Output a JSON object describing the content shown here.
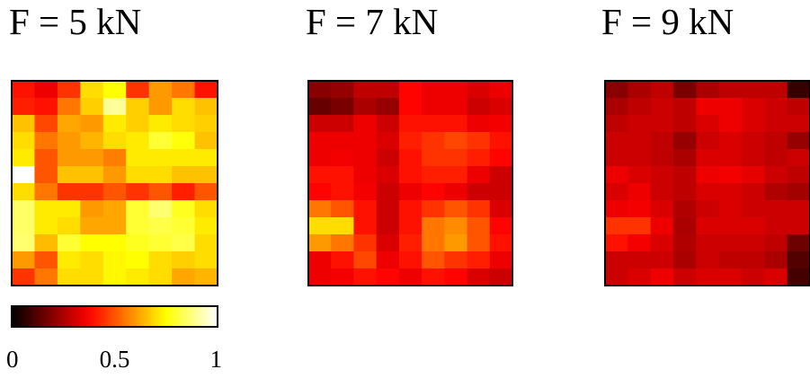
{
  "chart_data": {
    "type": "heatmap",
    "panels": [
      {
        "title": "F = 5 kN",
        "grid": [
          [
            0.4,
            0.35,
            0.45,
            0.7,
            0.75,
            0.45,
            0.6,
            0.55,
            0.4
          ],
          [
            0.42,
            0.4,
            0.55,
            0.68,
            0.9,
            0.68,
            0.6,
            0.7,
            0.66
          ],
          [
            0.66,
            0.48,
            0.62,
            0.6,
            0.72,
            0.68,
            0.72,
            0.7,
            0.68
          ],
          [
            0.7,
            0.55,
            0.6,
            0.64,
            0.7,
            0.72,
            0.8,
            0.76,
            0.66
          ],
          [
            0.72,
            0.5,
            0.6,
            0.6,
            0.56,
            0.72,
            0.72,
            0.72,
            0.72
          ],
          [
            1.0,
            0.5,
            0.66,
            0.66,
            0.6,
            0.7,
            0.7,
            0.66,
            0.66
          ],
          [
            0.7,
            0.55,
            0.45,
            0.45,
            0.5,
            0.45,
            0.5,
            0.42,
            0.5
          ],
          [
            0.85,
            0.72,
            0.72,
            0.6,
            0.62,
            0.8,
            0.86,
            0.78,
            0.7
          ],
          [
            0.85,
            0.72,
            0.7,
            0.62,
            0.62,
            0.8,
            0.82,
            0.8,
            0.72
          ],
          [
            0.86,
            0.65,
            0.8,
            0.75,
            0.75,
            0.78,
            0.8,
            0.82,
            0.7
          ],
          [
            0.6,
            0.5,
            0.72,
            0.7,
            0.74,
            0.75,
            0.7,
            0.68,
            0.7
          ],
          [
            0.45,
            0.55,
            0.7,
            0.7,
            0.74,
            0.72,
            0.7,
            0.62,
            0.64
          ]
        ]
      },
      {
        "title": "F = 7 kN",
        "grid": [
          [
            0.2,
            0.22,
            0.28,
            0.28,
            0.38,
            0.35,
            0.35,
            0.32,
            0.35
          ],
          [
            0.15,
            0.18,
            0.25,
            0.22,
            0.38,
            0.35,
            0.35,
            0.3,
            0.32
          ],
          [
            0.3,
            0.3,
            0.35,
            0.3,
            0.4,
            0.4,
            0.4,
            0.35,
            0.36
          ],
          [
            0.35,
            0.35,
            0.35,
            0.32,
            0.42,
            0.45,
            0.48,
            0.45,
            0.4
          ],
          [
            0.35,
            0.36,
            0.35,
            0.3,
            0.4,
            0.45,
            0.45,
            0.42,
            0.38
          ],
          [
            0.4,
            0.4,
            0.35,
            0.32,
            0.4,
            0.42,
            0.42,
            0.35,
            0.3
          ],
          [
            0.38,
            0.4,
            0.36,
            0.3,
            0.35,
            0.38,
            0.35,
            0.3,
            0.3
          ],
          [
            0.55,
            0.5,
            0.4,
            0.3,
            0.4,
            0.45,
            0.5,
            0.45,
            0.32
          ],
          [
            0.7,
            0.7,
            0.4,
            0.3,
            0.4,
            0.55,
            0.58,
            0.5,
            0.38
          ],
          [
            0.6,
            0.55,
            0.45,
            0.32,
            0.42,
            0.55,
            0.6,
            0.5,
            0.4
          ],
          [
            0.35,
            0.4,
            0.48,
            0.35,
            0.4,
            0.5,
            0.45,
            0.42,
            0.35
          ],
          [
            0.35,
            0.36,
            0.4,
            0.38,
            0.35,
            0.4,
            0.38,
            0.32,
            0.3
          ]
        ]
      },
      {
        "title": "F = 9 kN",
        "grid": [
          [
            0.2,
            0.25,
            0.28,
            0.18,
            0.25,
            0.28,
            0.28,
            0.28,
            0.08
          ],
          [
            0.25,
            0.28,
            0.3,
            0.28,
            0.35,
            0.35,
            0.32,
            0.3,
            0.28
          ],
          [
            0.28,
            0.3,
            0.3,
            0.28,
            0.32,
            0.35,
            0.32,
            0.3,
            0.3
          ],
          [
            0.3,
            0.3,
            0.28,
            0.22,
            0.3,
            0.32,
            0.3,
            0.28,
            0.22
          ],
          [
            0.3,
            0.3,
            0.28,
            0.25,
            0.32,
            0.32,
            0.3,
            0.28,
            0.3
          ],
          [
            0.35,
            0.32,
            0.3,
            0.28,
            0.35,
            0.36,
            0.34,
            0.3,
            0.28
          ],
          [
            0.32,
            0.35,
            0.3,
            0.28,
            0.32,
            0.32,
            0.3,
            0.26,
            0.24
          ],
          [
            0.35,
            0.36,
            0.32,
            0.26,
            0.3,
            0.32,
            0.3,
            0.3,
            0.3
          ],
          [
            0.45,
            0.45,
            0.35,
            0.25,
            0.32,
            0.32,
            0.32,
            0.3,
            0.3
          ],
          [
            0.4,
            0.36,
            0.32,
            0.26,
            0.3,
            0.3,
            0.3,
            0.28,
            0.16
          ],
          [
            0.3,
            0.3,
            0.3,
            0.25,
            0.3,
            0.28,
            0.28,
            0.25,
            0.12
          ],
          [
            0.3,
            0.32,
            0.35,
            0.3,
            0.32,
            0.32,
            0.3,
            0.32,
            0.1
          ]
        ]
      }
    ],
    "colorbar": {
      "range": [
        0,
        1
      ],
      "colormap": "hot",
      "tick_labels": [
        "0",
        "0.5",
        "1"
      ],
      "tick_values": [
        0,
        0.5,
        1
      ]
    },
    "colors": {
      "frame": "#000000",
      "background": "#ffffff"
    }
  }
}
